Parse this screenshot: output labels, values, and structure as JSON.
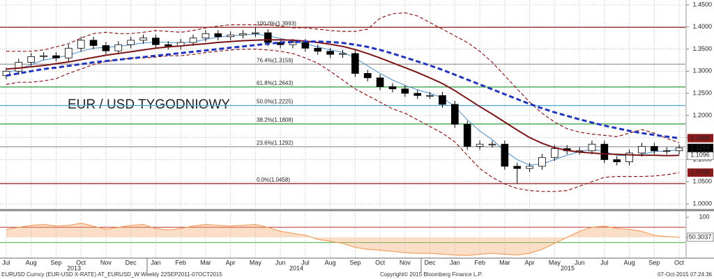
{
  "chart_data": {
    "type": "candlestick",
    "title": "EUR / USD TYGODNIOWY",
    "title_color": "#e0302a",
    "categories": [
      "Jul",
      null,
      "Aug",
      null,
      "Sep",
      null,
      "Oct",
      null,
      "Nov",
      null,
      "Dec",
      null,
      "Jan",
      null,
      "Feb",
      null,
      "Mar",
      null,
      "Apr",
      null,
      "May",
      null,
      "Jun",
      null,
      "Jul",
      null,
      "Aug",
      null,
      "Sep",
      null,
      "Oct",
      null,
      "Nov",
      null,
      "Dec",
      null,
      "Jan",
      null,
      "Feb",
      null,
      "Mar",
      null,
      "Apr",
      null,
      "May",
      null,
      "Jun",
      null,
      "Jul",
      null,
      "Aug",
      null,
      "Sep",
      null,
      "Oct"
    ],
    "open": [
      1.29,
      1.3,
      1.32,
      1.333,
      1.335,
      1.33,
      1.352,
      1.37,
      1.358,
      1.346,
      1.36,
      1.37,
      1.375,
      1.36,
      1.357,
      1.365,
      1.375,
      1.385,
      1.378,
      1.382,
      1.385,
      1.387,
      1.365,
      1.36,
      1.365,
      1.352,
      1.345,
      1.338,
      1.34,
      1.295,
      1.285,
      1.265,
      1.26,
      1.25,
      1.245,
      1.245,
      1.225,
      1.18,
      1.13,
      1.135,
      1.135,
      1.085,
      1.08,
      1.085,
      1.105,
      1.125,
      1.12,
      1.12,
      1.135,
      1.1,
      1.095,
      1.115,
      1.13,
      1.12,
      1.12
    ],
    "high": [
      1.308,
      1.328,
      1.341,
      1.343,
      1.343,
      1.36,
      1.378,
      1.378,
      1.366,
      1.368,
      1.378,
      1.383,
      1.383,
      1.368,
      1.373,
      1.383,
      1.393,
      1.393,
      1.39,
      1.393,
      1.399,
      1.395,
      1.373,
      1.373,
      1.373,
      1.36,
      1.353,
      1.348,
      1.348,
      1.303,
      1.293,
      1.273,
      1.268,
      1.258,
      1.253,
      1.253,
      1.233,
      1.188,
      1.143,
      1.143,
      1.143,
      1.093,
      1.093,
      1.113,
      1.133,
      1.133,
      1.128,
      1.143,
      1.143,
      1.108,
      1.123,
      1.138,
      1.138,
      1.128,
      1.134
    ],
    "low": [
      1.282,
      1.292,
      1.312,
      1.325,
      1.322,
      1.322,
      1.344,
      1.35,
      1.338,
      1.338,
      1.352,
      1.362,
      1.352,
      1.349,
      1.349,
      1.357,
      1.367,
      1.37,
      1.37,
      1.374,
      1.377,
      1.357,
      1.352,
      1.352,
      1.344,
      1.337,
      1.33,
      1.33,
      1.287,
      1.277,
      1.257,
      1.252,
      1.242,
      1.237,
      1.237,
      1.217,
      1.172,
      1.122,
      1.122,
      1.127,
      1.077,
      1.046,
      1.072,
      1.077,
      1.097,
      1.112,
      1.112,
      1.112,
      1.092,
      1.087,
      1.087,
      1.107,
      1.112,
      1.112,
      1.112
    ],
    "close": [
      1.3,
      1.32,
      1.333,
      1.335,
      1.33,
      1.352,
      1.37,
      1.358,
      1.346,
      1.36,
      1.37,
      1.375,
      1.36,
      1.357,
      1.365,
      1.375,
      1.385,
      1.378,
      1.382,
      1.385,
      1.387,
      1.365,
      1.36,
      1.365,
      1.352,
      1.345,
      1.338,
      1.34,
      1.295,
      1.285,
      1.265,
      1.26,
      1.25,
      1.245,
      1.245,
      1.225,
      1.18,
      1.13,
      1.135,
      1.135,
      1.085,
      1.08,
      1.085,
      1.105,
      1.125,
      1.12,
      1.12,
      1.135,
      1.1,
      1.095,
      1.115,
      1.13,
      1.12,
      1.12,
      1.1264
    ],
    "up_color": "#ffffff",
    "down_color": "#000000",
    "close_tag_color": "#000000",
    "ylim": [
      0.989,
      1.461
    ],
    "yticks": [
      {
        "value": 1.0,
        "label": "1.0000"
      },
      {
        "value": 1.05,
        "label": "1.0500"
      },
      {
        "value": 1.1,
        "label": "1.1000"
      },
      {
        "value": 1.15,
        "label": "1.1500"
      },
      {
        "value": 1.2,
        "label": "1.2000"
      },
      {
        "value": 1.25,
        "label": "1.2500"
      },
      {
        "value": 1.3,
        "label": "1.3000"
      },
      {
        "value": 1.35,
        "label": "1.3500"
      },
      {
        "value": 1.4,
        "label": "1.4000"
      },
      {
        "value": 1.45,
        "label": "1.4500"
      }
    ],
    "grid": true,
    "series": [
      {
        "color": "#2233bb",
        "dashed": true,
        "width": 3,
        "tag_color": "#8b1a1a",
        "values": [
          1.29,
          1.295,
          1.3,
          1.305,
          1.308,
          1.312,
          1.316,
          1.32,
          1.323,
          1.326,
          1.329,
          1.332,
          1.335,
          1.338,
          1.341,
          1.344,
          1.347,
          1.35,
          1.353,
          1.356,
          1.359,
          1.362,
          1.365,
          1.366,
          1.367,
          1.367,
          1.366,
          1.364,
          1.36,
          1.355,
          1.348,
          1.34,
          1.331,
          1.322,
          1.313,
          1.303,
          1.292,
          1.281,
          1.27,
          1.259,
          1.248,
          1.237,
          1.226,
          1.216,
          1.207,
          1.199,
          1.191,
          1.184,
          1.177,
          1.171,
          1.165,
          1.16,
          1.156,
          1.152,
          1.1486
        ]
      },
      {
        "color": "#7a1416",
        "dashed": false,
        "width": 2,
        "tag_color": "#ffffff",
        "values": [
          1.305,
          1.307,
          1.31,
          1.313,
          1.317,
          1.321,
          1.326,
          1.331,
          1.336,
          1.34,
          1.344,
          1.348,
          1.352,
          1.355,
          1.357,
          1.36,
          1.362,
          1.365,
          1.367,
          1.369,
          1.37,
          1.371,
          1.371,
          1.37,
          1.368,
          1.365,
          1.361,
          1.356,
          1.349,
          1.34,
          1.33,
          1.319,
          1.308,
          1.297,
          1.285,
          1.272,
          1.256,
          1.238,
          1.22,
          1.203,
          1.185,
          1.167,
          1.15,
          1.137,
          1.127,
          1.121,
          1.117,
          1.115,
          1.113,
          1.112,
          1.111,
          1.11,
          1.11,
          1.109,
          1.1096
        ]
      },
      {
        "color": "#4a8cc8",
        "dashed": false,
        "width": 1,
        "values": [
          1.295,
          1.305,
          1.315,
          1.325,
          1.33,
          1.336,
          1.345,
          1.352,
          1.354,
          1.356,
          1.36,
          1.364,
          1.366,
          1.365,
          1.364,
          1.366,
          1.372,
          1.377,
          1.38,
          1.382,
          1.384,
          1.38,
          1.374,
          1.368,
          1.362,
          1.355,
          1.348,
          1.343,
          1.33,
          1.312,
          1.295,
          1.28,
          1.268,
          1.258,
          1.25,
          1.24,
          1.22,
          1.19,
          1.165,
          1.145,
          1.12,
          1.1,
          1.088,
          1.09,
          1.1,
          1.11,
          1.118,
          1.124,
          1.118,
          1.11,
          1.108,
          1.112,
          1.118,
          1.12,
          1.122
        ]
      },
      {
        "color": "#8b1a1a",
        "dashed": true,
        "width": 1.2,
        "values": [
          1.345,
          1.345,
          1.345,
          1.348,
          1.355,
          1.362,
          1.375,
          1.385,
          1.388,
          1.385,
          1.385,
          1.388,
          1.392,
          1.39,
          1.388,
          1.392,
          1.398,
          1.402,
          1.405,
          1.405,
          1.405,
          1.405,
          1.402,
          1.398,
          1.398,
          1.395,
          1.392,
          1.39,
          1.39,
          1.395,
          1.42,
          1.43,
          1.432,
          1.425,
          1.41,
          1.395,
          1.38,
          1.365,
          1.345,
          1.32,
          1.29,
          1.26,
          1.23,
          1.205,
          1.185,
          1.17,
          1.162,
          1.158,
          1.155,
          1.152,
          1.16,
          1.168,
          1.16,
          1.148,
          1.138
        ]
      },
      {
        "color": "#8b1a1a",
        "dashed": true,
        "width": 1.2,
        "tag_color": "#8b1a1a",
        "values": [
          1.27,
          1.275,
          1.275,
          1.278,
          1.283,
          1.295,
          1.305,
          1.315,
          1.322,
          1.325,
          1.33,
          1.33,
          1.332,
          1.335,
          1.335,
          1.338,
          1.342,
          1.345,
          1.348,
          1.35,
          1.35,
          1.348,
          1.345,
          1.34,
          1.33,
          1.318,
          1.3,
          1.28,
          1.26,
          1.245,
          1.23,
          1.215,
          1.205,
          1.19,
          1.175,
          1.16,
          1.14,
          1.11,
          1.08,
          1.06,
          1.045,
          1.035,
          1.03,
          1.028,
          1.028,
          1.03,
          1.04,
          1.05,
          1.06,
          1.062,
          1.062,
          1.062,
          1.063,
          1.066,
          1.0706
        ]
      }
    ],
    "fib_levels": [
      {
        "label": "100.0%(1.3993)",
        "value": 1.3993,
        "color": "#8b1a1a"
      },
      {
        "label": "76.4%(1.3159)",
        "value": 1.3159,
        "color": "#999999"
      },
      {
        "label": "61.8%(1.2643)",
        "value": 1.2643,
        "color": "#2a9a3a"
      },
      {
        "label": "50.0%(1.2225)",
        "value": 1.2225,
        "color": "#4aa8d8"
      },
      {
        "label": "38.2%(1.1808)",
        "value": 1.1808,
        "color": "#2a9a3a"
      },
      {
        "label": "23.6%(1.1292)",
        "value": 1.1292,
        "color": "#999999"
      },
      {
        "label": "0.0%(1.0458)",
        "value": 1.0458,
        "color": "#8b1a1a"
      }
    ],
    "indicator": {
      "color": "#f0a060",
      "ylim": [
        0,
        112.5
      ],
      "yticks": [
        100,
        50
      ],
      "levels": [
        {
          "value": 75,
          "color": "#c03030"
        },
        {
          "value": 37,
          "color": "#40b040"
        }
      ],
      "values": [
        70,
        75,
        80,
        82,
        78,
        80,
        85,
        78,
        70,
        75,
        80,
        82,
        72,
        68,
        72,
        78,
        82,
        80,
        78,
        80,
        82,
        75,
        65,
        60,
        55,
        45,
        40,
        35,
        25,
        20,
        18,
        15,
        12,
        10,
        10,
        8,
        6,
        5,
        8,
        10,
        8,
        6,
        10,
        20,
        35,
        50,
        65,
        75,
        78,
        72,
        70,
        65,
        55,
        52,
        50.3037
      ]
    },
    "year_labels": [
      "2013",
      "2014",
      "2015"
    ],
    "footer": {
      "left": "EURUSD Curncy (EUR-USD X-RATE) AT_EURUSD_W  Weekly 22SEP2011-07OCT2015",
      "center": "Copyright© 2015 Bloomberg Finance L.P.",
      "right": "07-Oct-2015 07:24:36"
    }
  }
}
